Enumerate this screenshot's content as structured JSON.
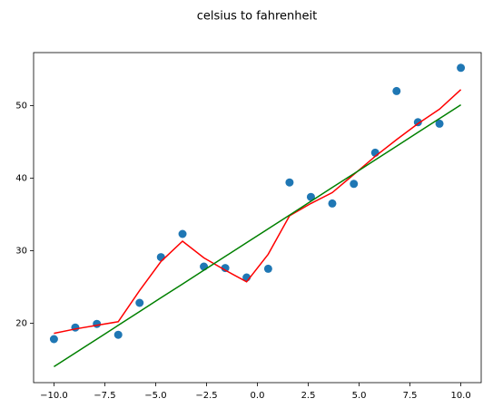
{
  "chart_data": {
    "type": "scatter",
    "title": "celsius to fahrenheit",
    "x": [
      -10,
      -8.95,
      -7.89,
      -6.84,
      -5.79,
      -4.74,
      -3.68,
      -2.63,
      -1.58,
      -0.53,
      0.53,
      1.58,
      2.63,
      3.68,
      4.74,
      5.79,
      6.84,
      7.89,
      8.95,
      10
    ],
    "series": [
      {
        "type": "scatter",
        "color": "#1f77b4",
        "values": [
          17.8,
          19.4,
          19.9,
          18.4,
          22.8,
          29.1,
          32.3,
          27.8,
          27.6,
          26.3,
          27.5,
          39.4,
          37.4,
          36.5,
          39.2,
          43.5,
          52.0,
          47.7,
          47.5,
          55.2
        ]
      },
      {
        "type": "line",
        "color": "#ff0000",
        "values": [
          18.6,
          19.2,
          19.7,
          20.2,
          24.5,
          28.5,
          31.3,
          29.0,
          27.3,
          25.7,
          29.5,
          34.8,
          36.5,
          38.0,
          40.5,
          43.0,
          45.3,
          47.5,
          49.5,
          52.2
        ]
      },
      {
        "type": "line",
        "color": "#008000",
        "values": [
          14.0,
          15.9,
          17.8,
          19.7,
          21.6,
          23.5,
          25.4,
          27.3,
          29.2,
          31.1,
          33.0,
          34.9,
          36.8,
          38.7,
          40.6,
          42.5,
          44.4,
          46.3,
          48.2,
          50.1
        ]
      }
    ],
    "xlim": [
      -11,
      11
    ],
    "ylim": [
      11.8,
      57.3
    ],
    "xticks": [
      {
        "value": -10,
        "label": "−10.0"
      },
      {
        "value": -7.5,
        "label": "−7.5"
      },
      {
        "value": -5,
        "label": "−5.0"
      },
      {
        "value": -2.5,
        "label": "−2.5"
      },
      {
        "value": 0,
        "label": "0.0"
      },
      {
        "value": 2.5,
        "label": "2.5"
      },
      {
        "value": 5,
        "label": "5.0"
      },
      {
        "value": 7.5,
        "label": "7.5"
      },
      {
        "value": 10,
        "label": "10.0"
      }
    ],
    "yticks": [
      20,
      30,
      40,
      50
    ]
  }
}
